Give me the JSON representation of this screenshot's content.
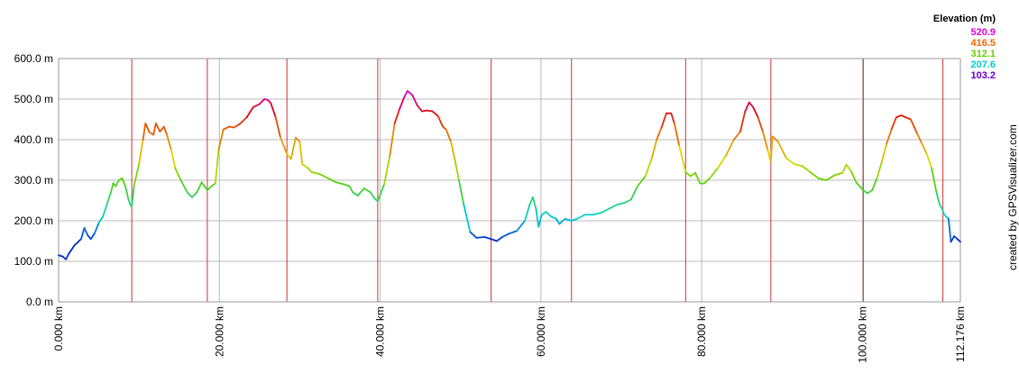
{
  "chart_data": {
    "type": "line",
    "title": "",
    "xlabel": "",
    "ylabel": "",
    "x_unit": "km",
    "y_unit": "m",
    "xlim": [
      0,
      112.176
    ],
    "ylim": [
      0,
      600
    ],
    "grid": true,
    "x_ticks": [
      {
        "value": 0,
        "label": "0.000 km"
      },
      {
        "value": 20,
        "label": "20.000 km"
      },
      {
        "value": 40,
        "label": "40.000 km"
      },
      {
        "value": 60,
        "label": "60.000 km"
      },
      {
        "value": 80,
        "label": "80.000 km"
      },
      {
        "value": 100,
        "label": "100.000 km"
      },
      {
        "value": 112.176,
        "label": "112.176 km"
      }
    ],
    "y_ticks": [
      {
        "value": 0,
        "label": "0.0 m"
      },
      {
        "value": 100,
        "label": "100.0 m"
      },
      {
        "value": 200,
        "label": "200.0 m"
      },
      {
        "value": 300,
        "label": "300.0 m"
      },
      {
        "value": 400,
        "label": "400.0 m"
      },
      {
        "value": 500,
        "label": "500.0 m"
      },
      {
        "value": 600,
        "label": "600.0 m"
      }
    ],
    "segment_markers_km": [
      9.1,
      18.5,
      28.4,
      39.7,
      53.8,
      63.8,
      78.0,
      88.6,
      100.1,
      110.0
    ],
    "legend": {
      "title": "Elevation (m)",
      "placement": "top-right",
      "entries": [
        {
          "label": "520.9",
          "color": "#dd00dd"
        },
        {
          "label": "416.5",
          "color": "#ee6600"
        },
        {
          "label": "312.1",
          "color": "#66cc00"
        },
        {
          "label": "207.6",
          "color": "#00cccc"
        },
        {
          "label": "103.2",
          "color": "#6600cc"
        }
      ]
    },
    "series": [
      {
        "x": [
          0.0,
          0.5,
          0.9,
          1.3,
          2.0,
          2.8,
          3.2,
          3.6,
          4.0,
          4.5,
          5.0,
          5.5,
          6.0,
          6.5,
          6.8,
          7.1,
          7.5,
          7.9,
          8.3,
          8.7,
          9.0,
          9.1,
          9.4,
          10.0,
          10.5,
          10.8,
          11.3,
          11.8,
          12.1,
          12.6,
          13.1,
          13.5,
          14.0,
          14.5,
          15.2,
          16.0,
          16.6,
          17.2,
          17.8,
          18.5,
          19.0,
          19.5,
          19.9,
          20.5,
          21.2,
          21.8,
          22.5,
          23.4,
          24.2,
          25.0,
          25.6,
          26.0,
          26.4,
          27.0,
          27.6,
          28.4,
          28.9,
          29.5,
          30.0,
          30.3,
          31.0,
          31.5,
          32.5,
          33.5,
          34.5,
          35.5,
          36.2,
          36.6,
          37.2,
          38.0,
          38.8,
          39.3,
          39.7,
          40.5,
          41.2,
          41.8,
          42.4,
          43.0,
          43.4,
          44.0,
          44.6,
          45.2,
          45.8,
          46.5,
          47.2,
          47.8,
          48.2,
          48.8,
          49.3,
          49.8,
          50.4,
          51.2,
          52.0,
          53.0,
          53.8,
          54.5,
          55.2,
          56.0,
          57.0,
          58.0,
          58.6,
          59.0,
          59.4,
          59.7,
          60.1,
          60.6,
          61.3,
          61.9,
          62.3,
          63.0,
          63.8,
          64.5,
          65.5,
          66.5,
          67.5,
          68.5,
          69.5,
          70.5,
          71.2,
          72.0,
          73.0,
          73.8,
          74.4,
          75.0,
          75.6,
          76.2,
          76.6,
          77.2,
          78.0,
          78.6,
          79.2,
          79.8,
          80.3,
          81.0,
          82.0,
          83.0,
          84.0,
          84.8,
          85.4,
          85.9,
          86.4,
          87.0,
          87.6,
          88.2,
          88.6,
          88.8,
          89.5,
          90.5,
          91.5,
          92.5,
          93.5,
          94.5,
          95.5,
          96.5,
          97.0,
          97.5,
          98.0,
          98.6,
          99.2,
          100.1,
          100.6,
          101.2,
          101.8,
          102.4,
          103.0,
          103.6,
          104.2,
          104.8,
          105.4,
          106.0,
          106.8,
          107.4,
          108.0,
          108.6,
          109.2,
          109.6,
          110.0,
          110.1,
          110.4,
          110.7,
          111.0,
          111.4,
          111.8,
          112.176
        ],
        "y": [
          115,
          112,
          105,
          120,
          140,
          155,
          182,
          165,
          155,
          170,
          195,
          210,
          240,
          270,
          293,
          285,
          300,
          305,
          285,
          252,
          236,
          236,
          288,
          340,
          400,
          440,
          418,
          412,
          440,
          420,
          432,
          410,
          375,
          330,
          300,
          270,
          258,
          270,
          295,
          275,
          285,
          292,
          375,
          425,
          432,
          430,
          438,
          455,
          480,
          488,
          500,
          498,
          490,
          455,
          405,
          365,
          352,
          405,
          395,
          340,
          330,
          320,
          315,
          305,
          295,
          290,
          285,
          270,
          262,
          280,
          270,
          255,
          248,
          290,
          360,
          440,
          475,
          505,
          520,
          510,
          485,
          470,
          472,
          470,
          458,
          432,
          425,
          395,
          350,
          300,
          240,
          172,
          158,
          160,
          155,
          150,
          160,
          168,
          175,
          200,
          240,
          258,
          228,
          185,
          215,
          222,
          210,
          205,
          192,
          205,
          200,
          205,
          215,
          215,
          220,
          230,
          240,
          245,
          252,
          285,
          310,
          355,
          400,
          430,
          465,
          465,
          440,
          385,
          320,
          310,
          318,
          292,
          292,
          305,
          330,
          360,
          400,
          420,
          470,
          492,
          480,
          455,
          420,
          375,
          345,
          408,
          395,
          355,
          340,
          335,
          320,
          305,
          300,
          312,
          315,
          318,
          338,
          322,
          295,
          275,
          268,
          275,
          305,
          345,
          390,
          425,
          455,
          460,
          455,
          450,
          415,
          390,
          365,
          330,
          270,
          240,
          225,
          218,
          210,
          205,
          148,
          162,
          155,
          148
        ]
      }
    ]
  },
  "credit": "created by GPSVisualizer.com"
}
